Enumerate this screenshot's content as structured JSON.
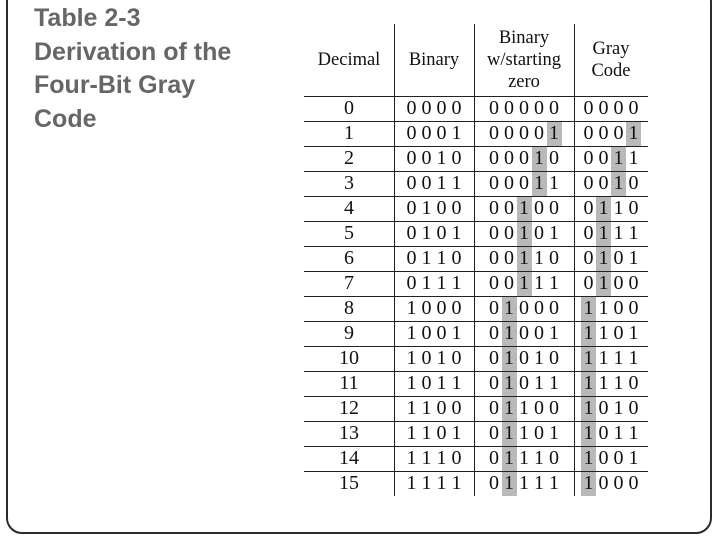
{
  "slide": {
    "title_lines": [
      "Table 2-3",
      "Derivation of the",
      "Four-Bit Gray",
      "Code"
    ]
  },
  "table": {
    "headers": [
      "Decimal",
      "Binary",
      "Binary w/starting zero",
      "Gray Code"
    ],
    "header_lines": [
      [
        "Decimal"
      ],
      [
        "Binary"
      ],
      [
        "Binary",
        "w/starting",
        "zero"
      ],
      [
        "Gray",
        "Code"
      ]
    ],
    "rows": [
      {
        "decimal": "0",
        "binary": "0000",
        "binary_zero": "00000",
        "gray": "0000"
      },
      {
        "decimal": "1",
        "binary": "0001",
        "binary_zero": "00001",
        "gray": "0001"
      },
      {
        "decimal": "2",
        "binary": "0010",
        "binary_zero": "00010",
        "gray": "0011"
      },
      {
        "decimal": "3",
        "binary": "0011",
        "binary_zero": "00011",
        "gray": "0010"
      },
      {
        "decimal": "4",
        "binary": "0100",
        "binary_zero": "00100",
        "gray": "0110"
      },
      {
        "decimal": "5",
        "binary": "0101",
        "binary_zero": "00101",
        "gray": "0111"
      },
      {
        "decimal": "6",
        "binary": "0110",
        "binary_zero": "00110",
        "gray": "0101"
      },
      {
        "decimal": "7",
        "binary": "0111",
        "binary_zero": "00111",
        "gray": "0100"
      },
      {
        "decimal": "8",
        "binary": "1000",
        "binary_zero": "01000",
        "gray": "1100"
      },
      {
        "decimal": "9",
        "binary": "1001",
        "binary_zero": "01001",
        "gray": "1101"
      },
      {
        "decimal": "10",
        "binary": "1010",
        "binary_zero": "01010",
        "gray": "1111"
      },
      {
        "decimal": "11",
        "binary": "1011",
        "binary_zero": "01011",
        "gray": "1110"
      },
      {
        "decimal": "12",
        "binary": "1100",
        "binary_zero": "01100",
        "gray": "1010"
      },
      {
        "decimal": "13",
        "binary": "1101",
        "binary_zero": "01101",
        "gray": "1011"
      },
      {
        "decimal": "14",
        "binary": "1110",
        "binary_zero": "01110",
        "gray": "1001"
      },
      {
        "decimal": "15",
        "binary": "1111",
        "binary_zero": "01111",
        "gray": "1000"
      }
    ],
    "colors": {
      "shade": "#b9b9b9",
      "title": "#666666",
      "lines": "#222222"
    }
  }
}
